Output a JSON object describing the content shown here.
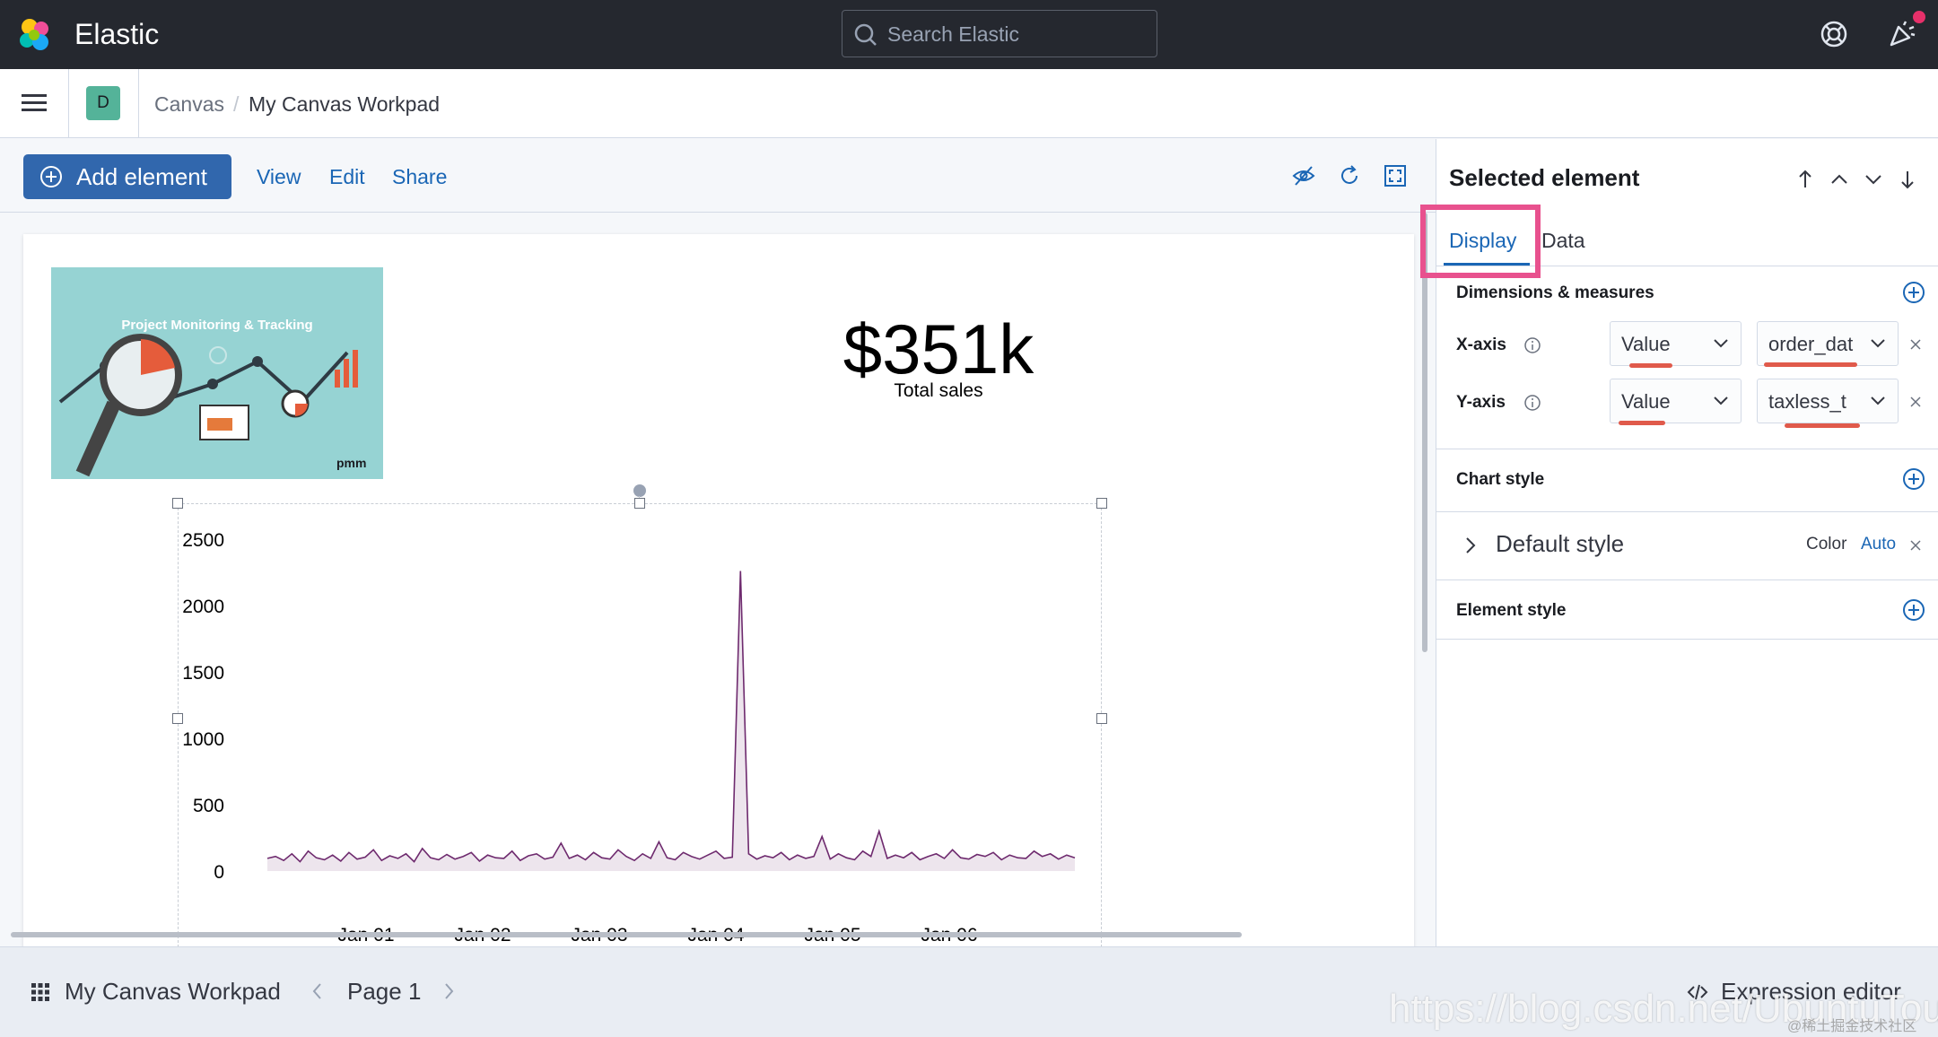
{
  "header": {
    "brand": "Elastic",
    "search_placeholder": "Search Elastic"
  },
  "breadcrumbs": {
    "space_initial": "D",
    "items": [
      "Canvas",
      "My Canvas Workpad"
    ]
  },
  "toolbar": {
    "add_label": "Add element",
    "menu": [
      "View",
      "Edit",
      "Share"
    ]
  },
  "workpad": {
    "image_title": "Project Monitoring & Tracking",
    "image_logo": "pmm",
    "metric_value": "$351k",
    "metric_label": "Total sales"
  },
  "chart_data": {
    "type": "line",
    "y_ticks": [
      "2500",
      "2000",
      "1500",
      "1000",
      "500",
      "0"
    ],
    "x_ticks": [
      "Jan 01",
      "Jan 02",
      "Jan 03",
      "Jan 04",
      "Jan 05",
      "Jan 06"
    ],
    "ylim": [
      0,
      2500
    ],
    "series": [
      {
        "color": "#6e2a6e",
        "values": [
          95,
          110,
          80,
          130,
          70,
          150,
          100,
          85,
          120,
          75,
          140,
          90,
          105,
          160,
          80,
          115,
          95,
          130,
          70,
          170,
          100,
          85,
          125,
          90,
          110,
          140,
          75,
          120,
          100,
          95,
          150,
          80,
          115,
          130,
          90,
          105,
          210,
          95,
          120,
          85,
          140,
          100,
          90,
          160,
          110,
          80,
          130,
          95,
          220,
          100,
          85,
          140,
          110,
          90,
          120,
          150,
          95,
          105,
          2260,
          130,
          90,
          115,
          100,
          140,
          85,
          120,
          95,
          110,
          260,
          90,
          130,
          100,
          85,
          150,
          110,
          300,
          95,
          120,
          100,
          140,
          85,
          110,
          130,
          95,
          160,
          100,
          90,
          125,
          110,
          140,
          85,
          120,
          100,
          95,
          150,
          110,
          130,
          90,
          120,
          100
        ]
      }
    ]
  },
  "sidebar": {
    "title": "Selected element",
    "tabs": [
      "Display",
      "Data"
    ],
    "dimensions_title": "Dimensions & measures",
    "x_axis": {
      "label": "X-axis",
      "type": "Value",
      "field": "order_dat"
    },
    "y_axis": {
      "label": "Y-axis",
      "type": "Value",
      "field": "taxless_t"
    },
    "chart_style_title": "Chart style",
    "default_style": "Default style",
    "color_label": "Color",
    "color_value": "Auto",
    "element_style_title": "Element style"
  },
  "footer": {
    "workpad_name": "My Canvas Workpad",
    "page": "Page 1",
    "expression_editor": "Expression editor"
  },
  "watermark": {
    "url": "https://blog.csdn.net/UbuntuTouch",
    "small": "@稀土掘金技术社区"
  },
  "colors": {
    "header_bg": "#25282f",
    "primary": "#3167ad",
    "link": "#1a66b5",
    "highlight": "#e8518e",
    "underline_mark": "#e05a4b",
    "series": "#6e2a6e"
  }
}
